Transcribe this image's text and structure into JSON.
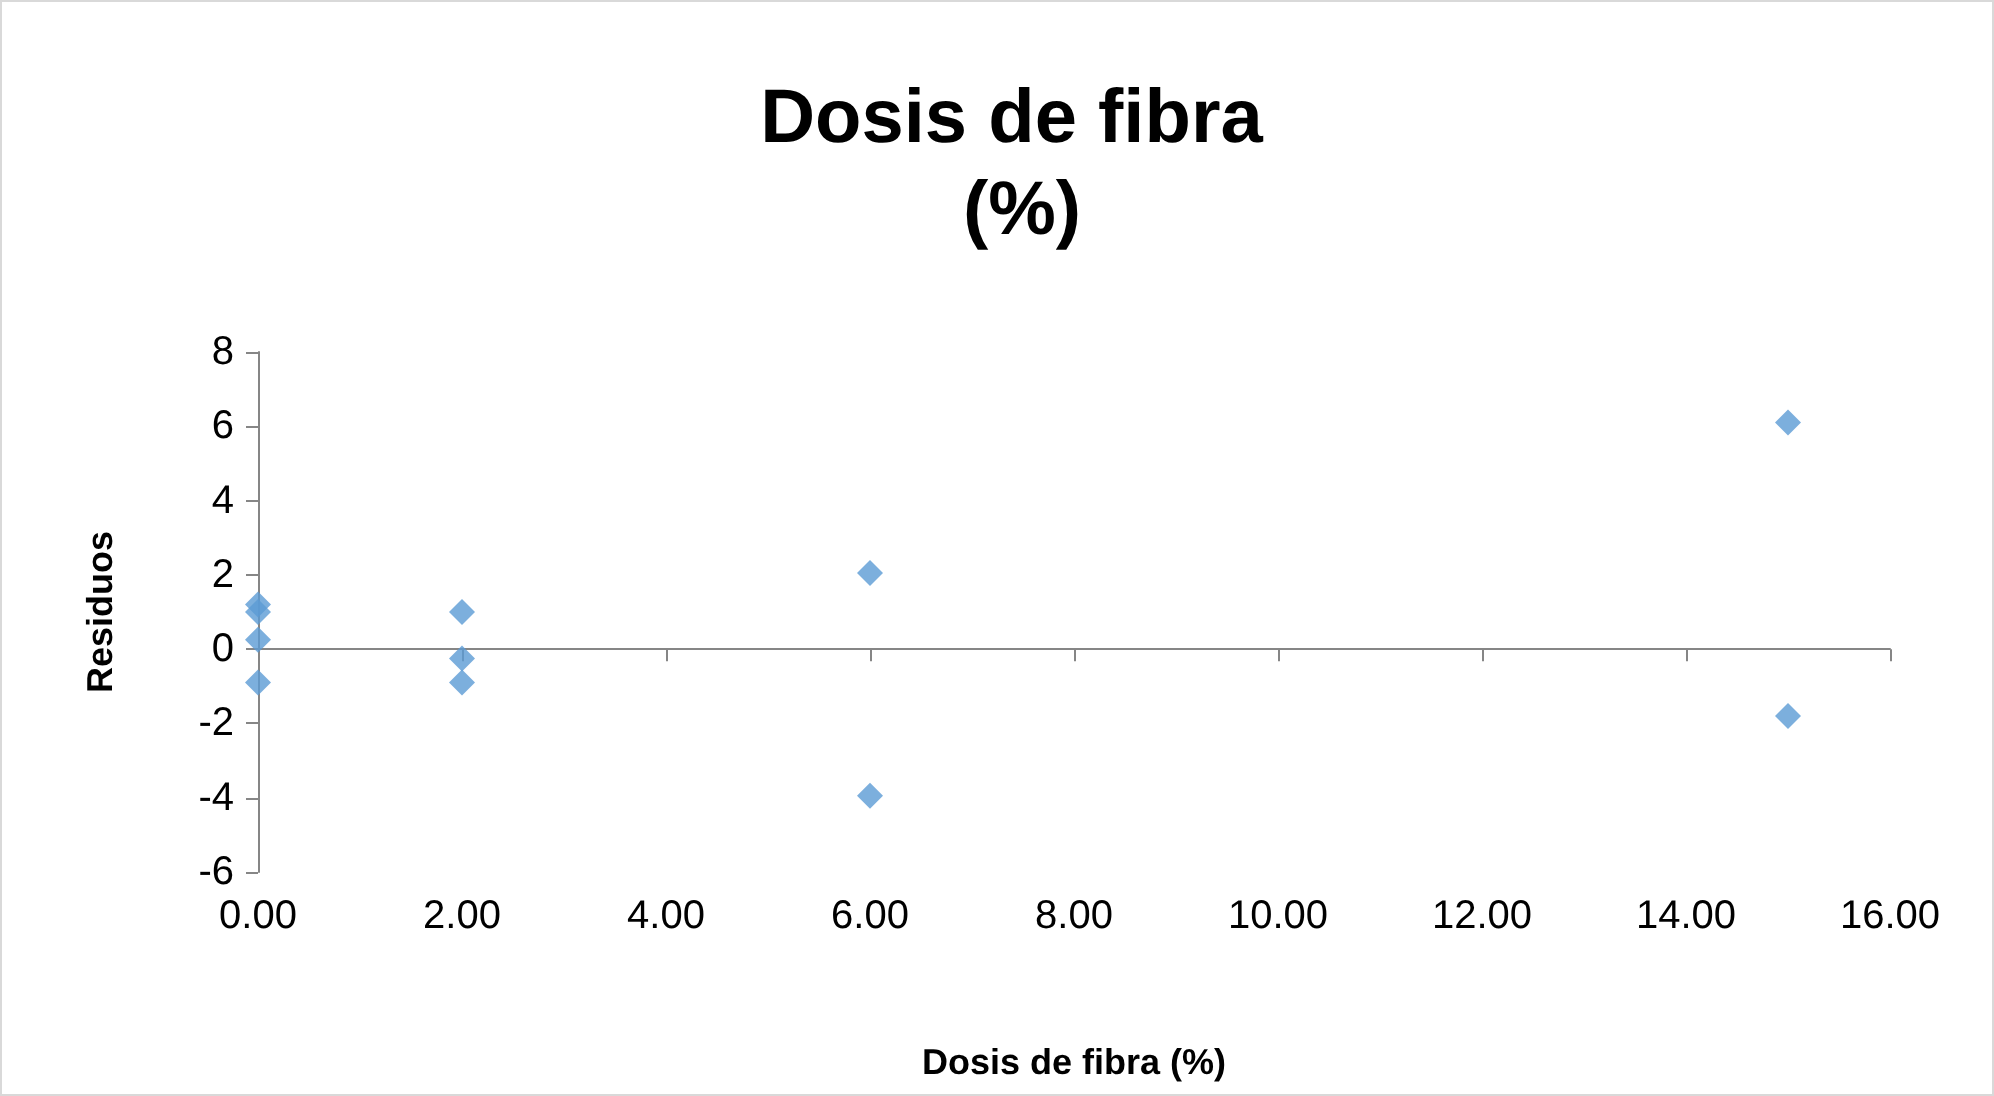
{
  "chart_data": {
    "type": "scatter",
    "title": "Dosis de fibra (%)",
    "xlabel": "Dosis de fibra (%)",
    "ylabel": "Residuos",
    "x": [
      0,
      0,
      0,
      0,
      2,
      2,
      2,
      6,
      6,
      15,
      15
    ],
    "values": [
      1.2,
      1.0,
      0.25,
      -0.9,
      1.0,
      -0.25,
      -0.9,
      2.05,
      -3.95,
      6.1,
      -1.8
    ],
    "color": "#5b9bd5",
    "marker": "diamond",
    "xlim": [
      0,
      16
    ],
    "xticks": [
      {
        "value": 0,
        "label": "0.00"
      },
      {
        "value": 2,
        "label": "2.00"
      },
      {
        "value": 4,
        "label": "4.00"
      },
      {
        "value": 6,
        "label": "6.00"
      },
      {
        "value": 8,
        "label": "8.00"
      },
      {
        "value": 10,
        "label": "10.00"
      },
      {
        "value": 12,
        "label": "12.00"
      },
      {
        "value": 14,
        "label": "14.00"
      },
      {
        "value": 16,
        "label": "16.00"
      }
    ],
    "ylim": [
      -6,
      8
    ],
    "yticks": [
      -6,
      -4,
      -2,
      0,
      2,
      4,
      6,
      8
    ]
  }
}
